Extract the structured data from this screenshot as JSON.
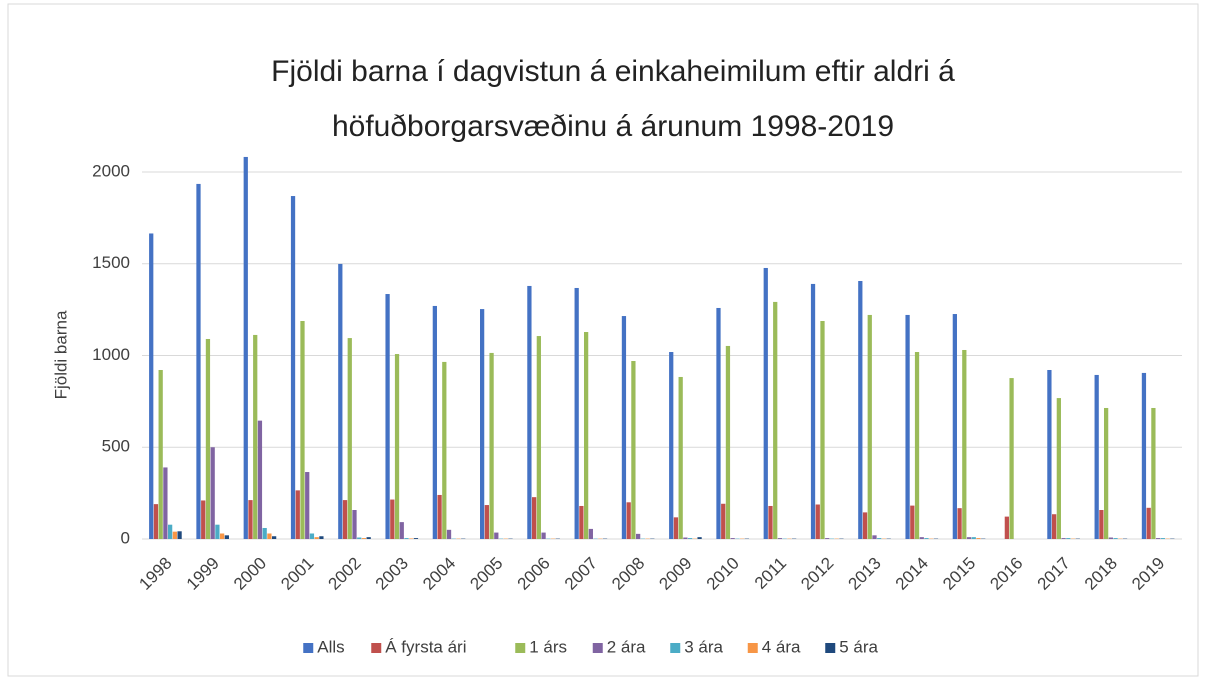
{
  "chart_data": {
    "type": "bar",
    "title": [
      "Fjöldi barna í dagvistun á einkaheimilum eftir aldri á",
      "höfuðborgarsvæðinu á árunum 1998-2019"
    ],
    "y_label": "Fjöldi barna",
    "categories": [
      "1998",
      "1999",
      "2000",
      "2001",
      "2002",
      "2003",
      "2004",
      "2005",
      "2006",
      "2007",
      "2008",
      "2009",
      "2010",
      "2011",
      "2012",
      "2013",
      "2014",
      "2015",
      "2016",
      "2017",
      "2018",
      "2019"
    ],
    "series": [
      {
        "name": "Alls",
        "color": "#4472c4",
        "values": [
          1665,
          1935,
          2082,
          1869,
          1499,
          1335,
          1270,
          1253,
          1379,
          1368,
          1215,
          1019,
          1259,
          1477,
          1390,
          1406,
          1221,
          1226,
          null,
          921,
          894,
          905
        ]
      },
      {
        "name": "Á fyrsta ári",
        "color": "#c0504d",
        "values": [
          190,
          210,
          212,
          265,
          212,
          215,
          240,
          185,
          228,
          180,
          200,
          118,
          192,
          180,
          188,
          145,
          182,
          168,
          122,
          135,
          158,
          170
        ]
      },
      {
        "name": "1 árs",
        "color": "#9bbb59",
        "values": [
          921,
          1090,
          1112,
          1188,
          1095,
          1008,
          965,
          1014,
          1106,
          1128,
          970,
          883,
          1052,
          1292,
          1188,
          1221,
          1019,
          1030,
          877,
          768,
          714,
          714
        ]
      },
      {
        "name": "2 ára",
        "color": "#8064a2",
        "values": [
          390,
          500,
          645,
          365,
          158,
          92,
          50,
          35,
          35,
          55,
          28,
          8,
          5,
          5,
          5,
          20,
          10,
          10,
          0,
          5,
          8,
          5
        ]
      },
      {
        "name": "3 ára",
        "color": "#4bacc6",
        "values": [
          78,
          78,
          60,
          30,
          8,
          5,
          2,
          2,
          2,
          2,
          2,
          5,
          2,
          2,
          2,
          5,
          5,
          10,
          0,
          5,
          5,
          5
        ]
      },
      {
        "name": "4 ára",
        "color": "#f79646",
        "values": [
          40,
          30,
          30,
          10,
          5,
          3,
          2,
          2,
          2,
          2,
          2,
          2,
          2,
          2,
          2,
          2,
          2,
          5,
          0,
          2,
          2,
          2
        ]
      },
      {
        "name": "5 ára",
        "color": "#1f497d",
        "values": [
          42,
          20,
          15,
          15,
          10,
          5,
          2,
          2,
          2,
          2,
          2,
          10,
          2,
          2,
          2,
          2,
          2,
          2,
          0,
          2,
          2,
          2
        ]
      }
    ],
    "ylim": [
      0,
      2000
    ],
    "yticks": [
      0,
      500,
      1000,
      1500,
      2000
    ],
    "grid": true,
    "legend": "bottom"
  }
}
